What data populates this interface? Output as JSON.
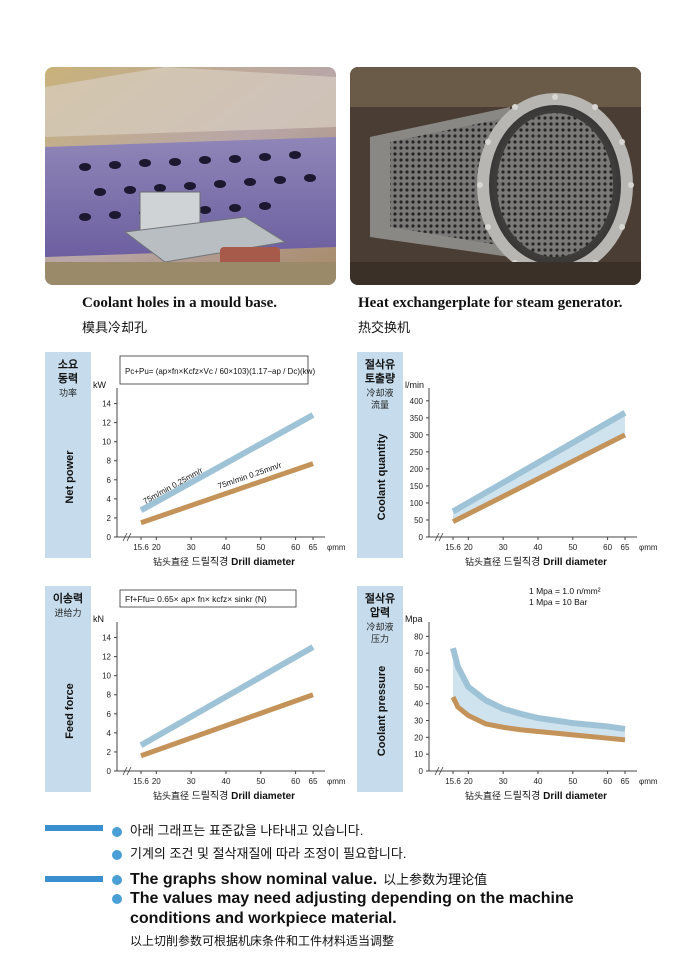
{
  "photos": {
    "left": {
      "caption_en": "Coolant holes in a mould base.",
      "caption_cn": "模具冷却孔"
    },
    "right": {
      "caption_en": "Heat exchangerplate for steam  generator.",
      "caption_cn": "热交换机"
    }
  },
  "chart_data": [
    {
      "type": "line",
      "label_kr": "소요\n동력",
      "label_cn": "功率",
      "ylabel": "Net power",
      "yunit": "kW",
      "formula": "Pc+Pu= (ap×fn×Kcfz×Vc / 60×103)(1.17−ap / Dc)(kw)",
      "xunit": "φmm",
      "xlabel_cn": "钻头直径",
      "xlabel_kr": "드릴직경",
      "xlabel_en": "Drill diameter",
      "x_ticks": [
        "15.6",
        "20",
        "30",
        "40",
        "50",
        "60",
        "65"
      ],
      "y_ticks": [
        "0",
        "2",
        "4",
        "6",
        "8",
        "10",
        "12",
        "14"
      ],
      "ylim": [
        0,
        15
      ],
      "series": [
        {
          "name": "75m/min  0.25mm/r",
          "color": "#9fc3d6",
          "x": [
            15.6,
            65
          ],
          "y": [
            2.8,
            12.8
          ]
        },
        {
          "name": "75m/min  0.25mm/r",
          "color": "#c4935a",
          "x": [
            15.6,
            65
          ],
          "y": [
            1.5,
            7.7
          ]
        }
      ]
    },
    {
      "type": "area",
      "label_kr": "절삭유\n토출량",
      "label_cn": "冷却液\n流量",
      "ylabel": "Coolant quantity",
      "yunit": "l/min",
      "xunit": "φmm",
      "xlabel_cn": "钻头直径",
      "xlabel_kr": "드릴직경",
      "xlabel_en": "Drill diameter",
      "x_ticks": [
        "15.6",
        "20",
        "30",
        "40",
        "50",
        "60",
        "65"
      ],
      "y_ticks": [
        "0",
        "50",
        "100",
        "150",
        "200",
        "250",
        "300",
        "350",
        "400"
      ],
      "ylim": [
        0,
        420
      ],
      "series": [
        {
          "name": "upper",
          "color": "#9fc3d6",
          "x": [
            15.6,
            65
          ],
          "y": [
            75,
            365
          ]
        },
        {
          "name": "lower",
          "color": "#c4935a",
          "x": [
            15.6,
            65
          ],
          "y": [
            45,
            300
          ]
        }
      ]
    },
    {
      "type": "line",
      "label_kr": "이송력",
      "label_cn": "进给力",
      "ylabel": "Feed force",
      "yunit": "kN",
      "formula": "Ff+Ffu= 0.65× ap× fn× kcfz× sinkr (N)",
      "xunit": "φmm",
      "xlabel_cn": "钻头直径",
      "xlabel_kr": "드릴직경",
      "xlabel_en": "Drill diameter",
      "x_ticks": [
        "15.6",
        "20",
        "30",
        "40",
        "50",
        "60",
        "65"
      ],
      "y_ticks": [
        "0",
        "2",
        "4",
        "6",
        "8",
        "10",
        "12",
        "14"
      ],
      "ylim": [
        0,
        15
      ],
      "series": [
        {
          "name": "upper",
          "color": "#9fc3d6",
          "x": [
            15.6,
            65
          ],
          "y": [
            2.7,
            13
          ]
        },
        {
          "name": "lower",
          "color": "#c4935a",
          "x": [
            15.6,
            65
          ],
          "y": [
            1.6,
            8
          ]
        }
      ]
    },
    {
      "type": "area",
      "label_kr": "절삭유\n압력",
      "label_cn": "冷却液\n压力",
      "ylabel": "Coolant pressure",
      "yunit": "Mpa",
      "annotations": [
        "1 Mpa = 1.0 n/mm²",
        "1 Mpa = 10 Bar"
      ],
      "xunit": "φmm",
      "xlabel_cn": "钻头直径",
      "xlabel_kr": "드릴직경",
      "xlabel_en": "Drill diameter",
      "x_ticks": [
        "15.6",
        "20",
        "30",
        "40",
        "50",
        "60",
        "65"
      ],
      "y_ticks": [
        "0",
        "10",
        "20",
        "30",
        "40",
        "50",
        "60",
        "70",
        "80"
      ],
      "ylim": [
        0,
        85
      ],
      "series": [
        {
          "name": "upper",
          "color": "#9fc3d6",
          "x": [
            15.6,
            17,
            20,
            25,
            30,
            35,
            40,
            45,
            50,
            55,
            60,
            65
          ],
          "y": [
            73,
            62,
            50,
            42,
            37,
            34,
            31.5,
            30,
            28.5,
            27.5,
            26.5,
            25
          ]
        },
        {
          "name": "lower",
          "color": "#c4935a",
          "x": [
            15.6,
            17,
            20,
            25,
            30,
            35,
            40,
            45,
            50,
            55,
            60,
            65
          ],
          "y": [
            44,
            38,
            33,
            28,
            26,
            24.5,
            23.5,
            22.5,
            21.5,
            20.5,
            19.5,
            18.5
          ]
        }
      ]
    }
  ],
  "notes": {
    "kr1": "아래 그래프는 표준값을 나타내고 있습니다.",
    "kr2": "기계의 조건 및 절삭재질에 따라 조정이 필요합니다.",
    "en1": "The graphs show nominal value.",
    "cn1": "以上参数为理论值",
    "en2a": "The values may need adjusting depending on the machine",
    "en2b": "conditions and workpiece material.",
    "cn2": "以上切削参数可根据机床条件和工件材料适当调整"
  }
}
